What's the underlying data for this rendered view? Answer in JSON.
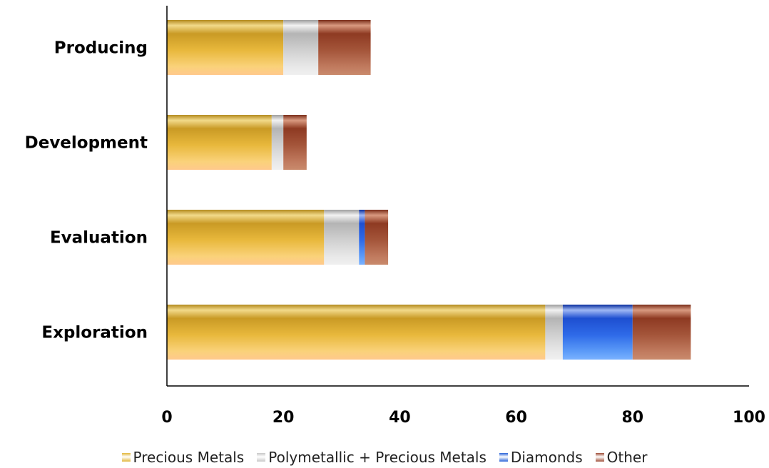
{
  "chart_data": {
    "type": "bar",
    "orientation": "horizontal",
    "stacked": true,
    "categories": [
      "Exploration",
      "Evaluation",
      "Development",
      "Producing"
    ],
    "series": [
      {
        "name": "Precious Metals",
        "values": [
          65,
          27,
          18,
          20
        ],
        "color": "#E2B63A"
      },
      {
        "name": "Polymetallic + Precious Metals",
        "values": [
          3,
          6,
          2,
          6
        ],
        "color": "#C8C8C8"
      },
      {
        "name": "Diamonds",
        "values": [
          12,
          1,
          0,
          0
        ],
        "color": "#2A63D8"
      },
      {
        "name": "Other",
        "values": [
          10,
          4,
          4,
          9
        ],
        "color": "#A0503A"
      }
    ],
    "xlim": [
      0,
      100
    ],
    "xticks": [
      0,
      20,
      40,
      60,
      80,
      100
    ],
    "grid": false,
    "legend_position": "bottom"
  }
}
